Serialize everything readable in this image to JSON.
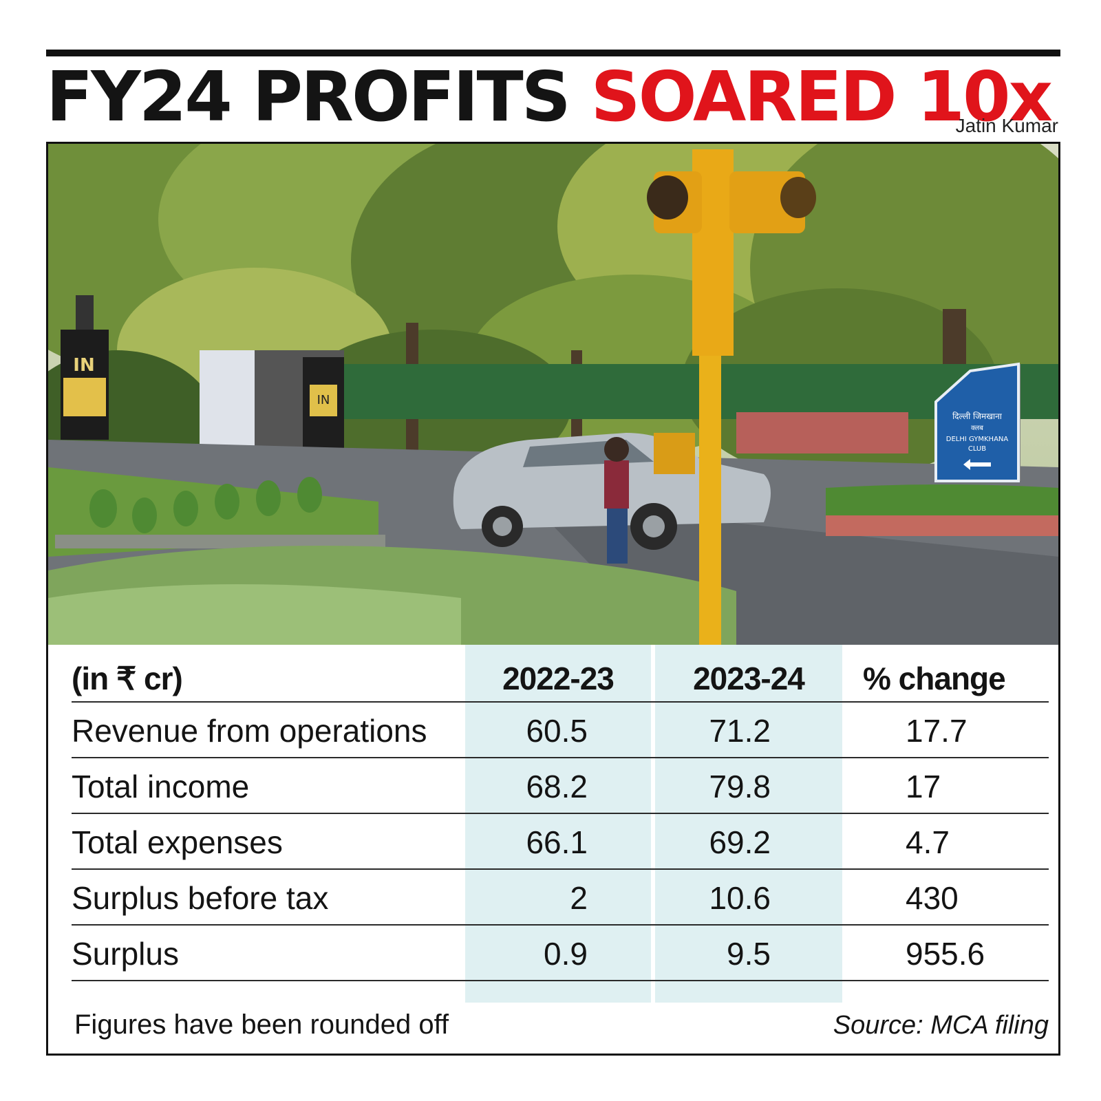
{
  "headline": {
    "part1": "FY24 PROFITS",
    "part2": "SOARED 10x"
  },
  "credit": "Jatin Kumar",
  "colors": {
    "accent": "#e0141b",
    "column_shade": "#dff0f2",
    "sign_blue": "#1f5fa8",
    "signal_yellow": "#f0b51b"
  },
  "photo": {
    "sign_text": [
      "दिल्ली जिमखाना",
      "क्लब",
      "DELHI GYMKHANA",
      "CLUB"
    ],
    "gate_label": "IN"
  },
  "chart_data": {
    "type": "table",
    "unit": "(in ₹ cr)",
    "columns": [
      "2022-23",
      "2023-24",
      "% change"
    ],
    "rows": [
      {
        "label": "Revenue from operations",
        "values": [
          "60.5",
          "71.2",
          "17.7"
        ]
      },
      {
        "label": "Total income",
        "values": [
          "68.2",
          "79.8",
          "17"
        ]
      },
      {
        "label": "Total expenses",
        "values": [
          "66.1",
          "69.2",
          "4.7"
        ]
      },
      {
        "label": "Surplus before tax",
        "values": [
          "2",
          "10.6",
          "430"
        ]
      },
      {
        "label": "Surplus",
        "values": [
          "0.9",
          "9.5",
          "955.6"
        ]
      }
    ]
  },
  "footer": {
    "note": "Figures have been rounded off",
    "source": "Source: MCA filing"
  }
}
